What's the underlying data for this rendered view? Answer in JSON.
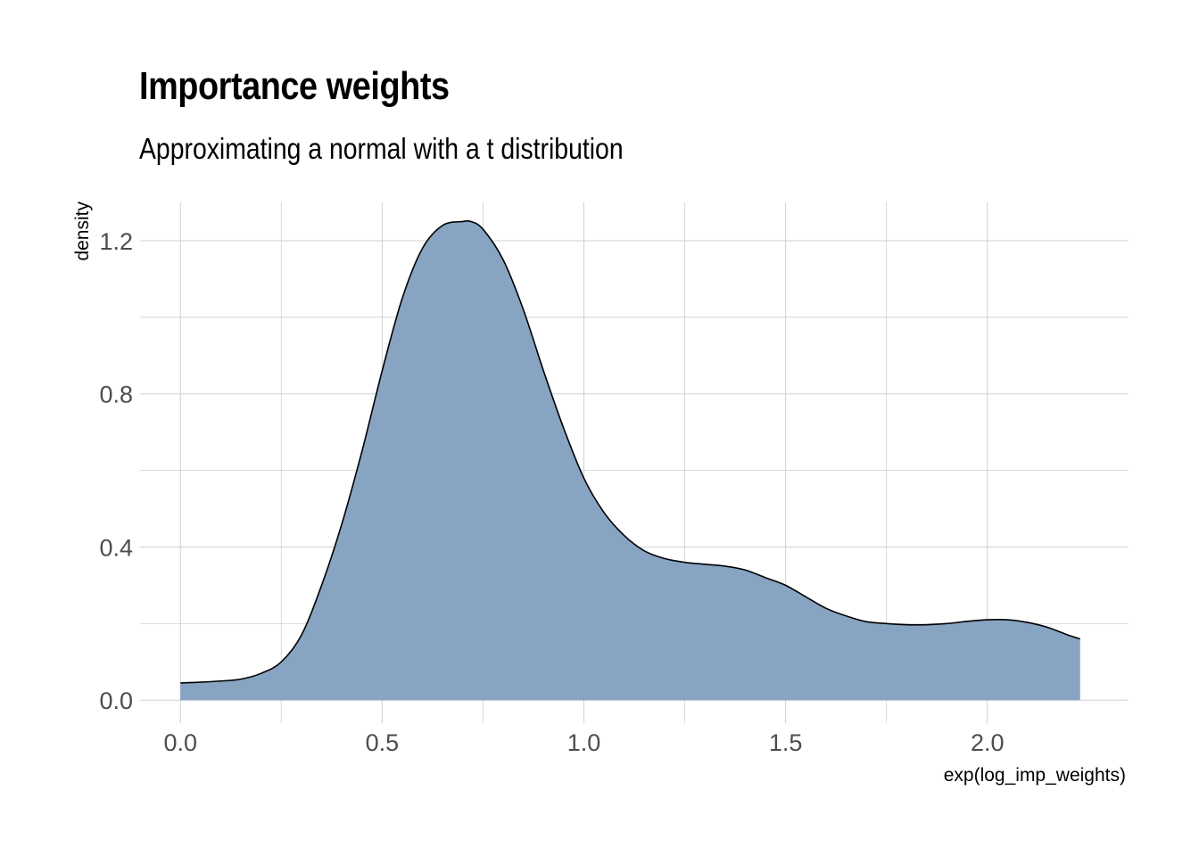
{
  "title": "Importance weights",
  "subtitle": "Approximating a normal with a t distribution",
  "colors": {
    "fill": "#87a4c3",
    "outline": "#000000",
    "grid": "#d0d0d0",
    "tick_text": "#4d4d4d"
  },
  "chart_data": {
    "type": "area",
    "title": "Importance weights",
    "subtitle": "Approximating a normal with a t distribution",
    "xlabel": "exp(log_imp_weights)",
    "ylabel": "density",
    "xlim": [
      -0.1,
      2.35
    ],
    "ylim": [
      -0.06,
      1.3
    ],
    "x_ticks": [
      0.0,
      0.5,
      1.0,
      1.5,
      2.0
    ],
    "x_tick_labels": [
      "0.0",
      "0.5",
      "1.0",
      "1.5",
      "2.0"
    ],
    "y_ticks": [
      0.0,
      0.4,
      0.8,
      1.2
    ],
    "y_tick_labels": [
      "0.0",
      "0.4",
      "0.8",
      "1.2"
    ],
    "x_minor_ticks": [
      0.25,
      0.75,
      1.25,
      1.75
    ],
    "y_minor_ticks": [
      0.2,
      0.6,
      1.0
    ],
    "grid": true,
    "legend": "none",
    "series": [
      {
        "x": [
          0.0,
          0.05,
          0.1,
          0.15,
          0.2,
          0.25,
          0.3,
          0.35,
          0.4,
          0.45,
          0.5,
          0.55,
          0.6,
          0.65,
          0.7,
          0.72,
          0.75,
          0.8,
          0.85,
          0.9,
          0.95,
          1.0,
          1.05,
          1.1,
          1.15,
          1.2,
          1.25,
          1.3,
          1.35,
          1.4,
          1.45,
          1.5,
          1.55,
          1.6,
          1.65,
          1.7,
          1.75,
          1.8,
          1.85,
          1.9,
          1.95,
          2.0,
          2.05,
          2.1,
          2.15,
          2.2,
          2.23
        ],
        "y": [
          0.045,
          0.047,
          0.05,
          0.055,
          0.07,
          0.1,
          0.17,
          0.3,
          0.46,
          0.65,
          0.86,
          1.05,
          1.18,
          1.24,
          1.25,
          1.25,
          1.23,
          1.15,
          1.02,
          0.86,
          0.71,
          0.58,
          0.49,
          0.43,
          0.39,
          0.37,
          0.36,
          0.355,
          0.35,
          0.34,
          0.32,
          0.3,
          0.27,
          0.24,
          0.22,
          0.205,
          0.2,
          0.197,
          0.197,
          0.2,
          0.206,
          0.21,
          0.21,
          0.203,
          0.19,
          0.17,
          0.16
        ]
      }
    ]
  }
}
